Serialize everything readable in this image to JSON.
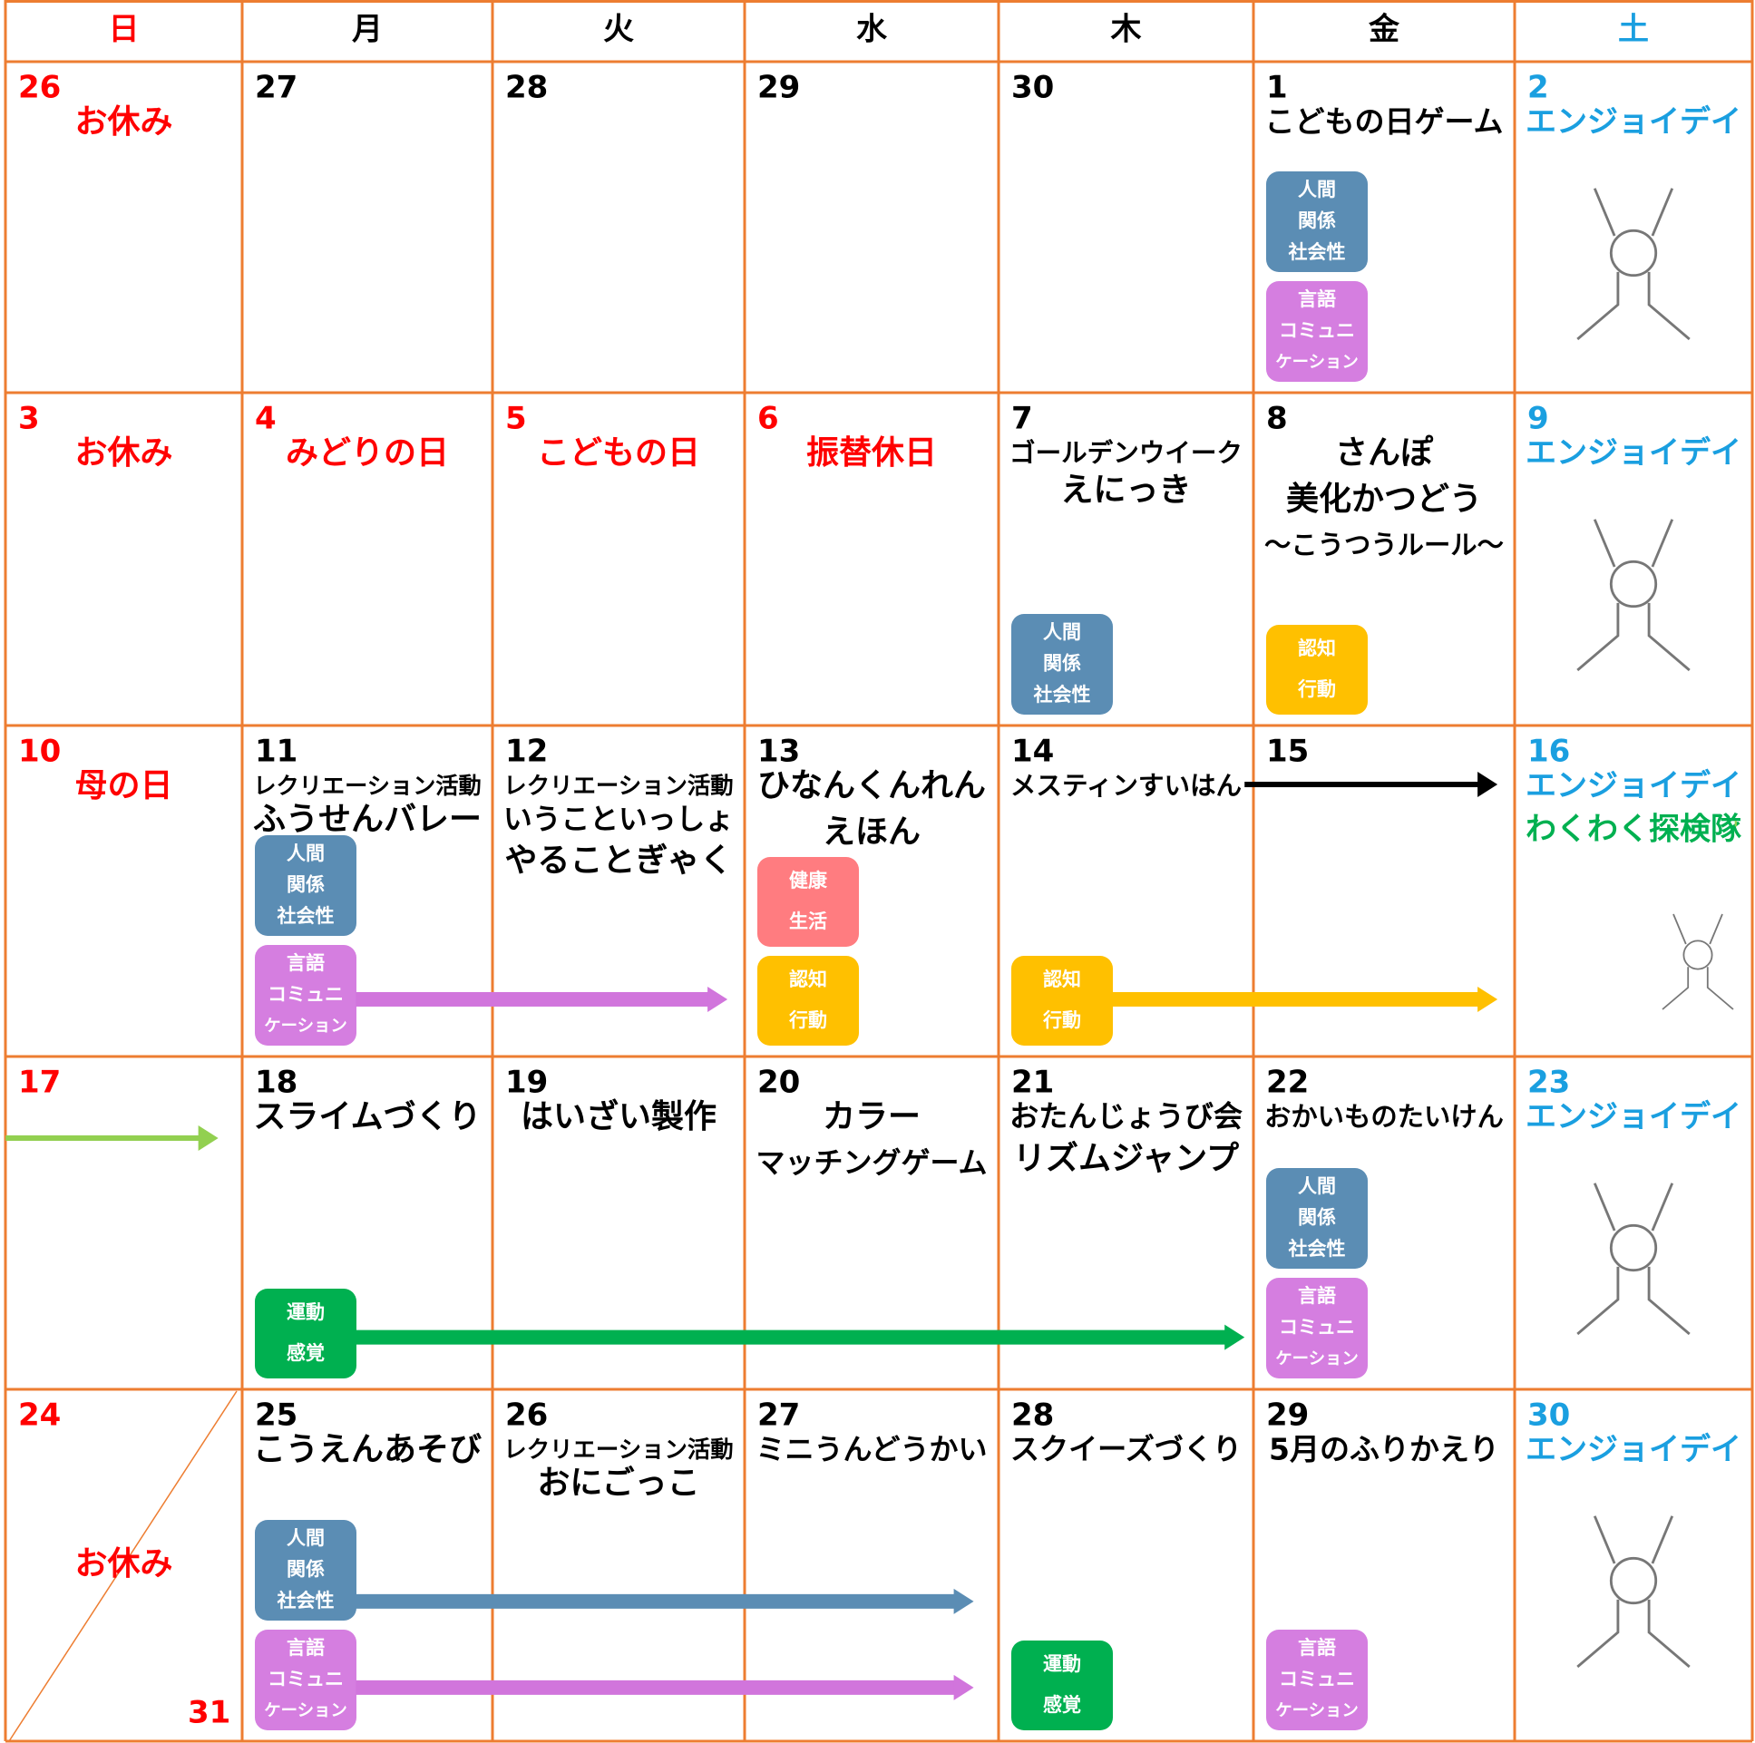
{
  "headers": [
    "日",
    "月",
    "火",
    "水",
    "木",
    "金",
    "土"
  ],
  "weeks": [
    [
      {
        "date": "26",
        "texts": [
          "お休み"
        ],
        "color": "#ff0000"
      },
      {
        "date": "27",
        "texts": []
      },
      {
        "date": "28",
        "texts": []
      },
      {
        "date": "29",
        "texts": []
      },
      {
        "date": "30",
        "texts": []
      },
      {
        "date": "1",
        "texts": [
          "こどもの日ゲーム"
        ],
        "tags": [
          {
            "lines": [
              "人間",
              "関係",
              "社会性"
            ],
            "color": "#5b8db4"
          },
          {
            "lines": [
              "言語",
              "コミュニ",
              "ケーション"
            ],
            "color": "#d57ee0"
          }
        ]
      },
      {
        "date": "2",
        "texts": [
          "エンジョイデイ"
        ],
        "color": "#1a9fe0"
      }
    ],
    [
      {
        "date": "3",
        "texts": [
          "お休み"
        ],
        "color": "#ff0000"
      },
      {
        "date": "4",
        "texts": [
          "みどりの日"
        ],
        "color": "#ff0000"
      },
      {
        "date": "5",
        "texts": [
          "こどもの日"
        ],
        "color": "#ff0000"
      },
      {
        "date": "6",
        "texts": [
          "振替休日"
        ],
        "color": "#ff0000"
      },
      {
        "date": "7",
        "texts": [
          "ゴールデンウイーク",
          "えにっき"
        ],
        "tags": [
          {
            "lines": [
              "人間",
              "関係",
              "社会性"
            ],
            "color": "#5b8db4"
          }
        ]
      },
      {
        "date": "8",
        "texts": [
          "さんぽ",
          "美化かつどう",
          "〜こうつうルール〜"
        ],
        "tags": [
          {
            "lines": [
              "認知",
              "行動"
            ],
            "color": "#ffc000"
          }
        ]
      },
      {
        "date": "9",
        "texts": [
          "エンジョイデイ"
        ],
        "color": "#1a9fe0"
      }
    ],
    [
      {
        "date": "10",
        "texts": [
          "母の日"
        ],
        "color": "#ff0000"
      },
      {
        "date": "11",
        "texts": [
          "レクリエーション活動",
          "ふうせんバレー"
        ],
        "tags": [
          {
            "lines": [
              "人間",
              "関係",
              "社会性"
            ],
            "color": "#5b8db4"
          },
          {
            "lines": [
              "言語",
              "コミュニ",
              "ケーション"
            ],
            "color": "#d57ee0"
          }
        ]
      },
      {
        "date": "12",
        "texts": [
          "レクリエーション活動",
          "いうこといっしょ",
          "やることぎゃく"
        ]
      },
      {
        "date": "13",
        "texts": [
          "ひなんくんれん",
          "えほん"
        ],
        "tags": [
          {
            "lines": [
              "健康",
              "生活"
            ],
            "color": "#ff7c80"
          },
          {
            "lines": [
              "認知",
              "行動"
            ],
            "color": "#ffc000"
          }
        ]
      },
      {
        "date": "14",
        "texts": [
          "メスティンすいはん"
        ],
        "tags": [
          {
            "lines": [
              "認知",
              "行動"
            ],
            "color": "#ffc000"
          }
        ]
      },
      {
        "date": "15",
        "texts": []
      },
      {
        "date": "16",
        "texts": [
          "エンジョイデイ",
          "わくわく探検隊"
        ],
        "color": "#1a9fe0",
        "text_colors": [
          "#1a9fe0",
          "#00b050"
        ]
      }
    ],
    [
      {
        "date": "17",
        "texts": [],
        "color": "#ff0000"
      },
      {
        "date": "18",
        "texts": [
          "スライムづくり"
        ],
        "tags": [
          {
            "lines": [
              "運動",
              "感覚"
            ],
            "color": "#00b050"
          }
        ]
      },
      {
        "date": "19",
        "texts": [
          "はいざい製作"
        ]
      },
      {
        "date": "20",
        "texts": [
          "カラー",
          "マッチングゲーム"
        ]
      },
      {
        "date": "21",
        "texts": [
          "おたんじょうび会",
          "リズムジャンプ"
        ]
      },
      {
        "date": "22",
        "texts": [
          "おかいものたいけん"
        ],
        "tags": [
          {
            "lines": [
              "人間",
              "関係",
              "社会性"
            ],
            "color": "#5b8db4"
          },
          {
            "lines": [
              "言語",
              "コミュニ",
              "ケーション"
            ],
            "color": "#d57ee0"
          }
        ]
      },
      {
        "date": "23",
        "texts": [
          "エンジョイデイ"
        ],
        "color": "#1a9fe0"
      }
    ],
    [
      {
        "date": "24",
        "date2": "31",
        "texts": [
          "お休み"
        ],
        "color": "#ff0000"
      },
      {
        "date": "25",
        "texts": [
          "こうえんあそび"
        ],
        "tags": [
          {
            "lines": [
              "人間",
              "関係",
              "社会性"
            ],
            "color": "#5b8db4"
          },
          {
            "lines": [
              "言語",
              "コミュニ",
              "ケーション"
            ],
            "color": "#d57ee0"
          }
        ]
      },
      {
        "date": "26",
        "texts": [
          "レクリエーション活動",
          "おにごっこ"
        ]
      },
      {
        "date": "27",
        "texts": [
          "ミニうんどうかい"
        ]
      },
      {
        "date": "28",
        "texts": [
          "スクイーズづくり"
        ],
        "tags": [
          {
            "lines": [
              "運動",
              "感覚"
            ],
            "color": "#00b050"
          }
        ]
      },
      {
        "date": "29",
        "texts": [
          "5月のふりかえり"
        ],
        "tags": [
          {
            "lines": [
              "言語",
              "コミュニ",
              "ケーション"
            ],
            "color": "#d57ee0"
          }
        ]
      },
      {
        "date": "30",
        "texts": [
          "エンジョイデイ"
        ],
        "color": "#1a9fe0"
      }
    ]
  ]
}
